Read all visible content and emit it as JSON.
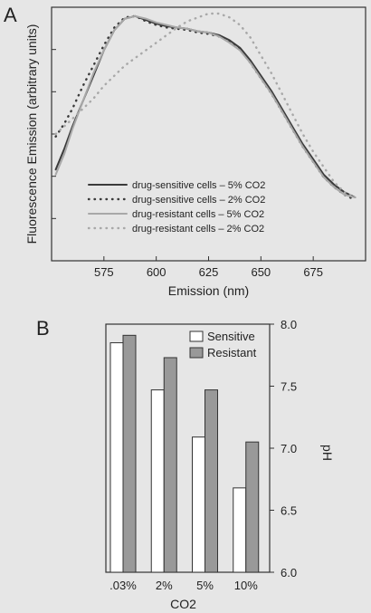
{
  "chart_data": [
    {
      "panel": "A",
      "type": "line",
      "xlabel": "Emission (nm)",
      "ylabel": "Fluorescence Emission (arbitrary units)",
      "xlim": [
        550,
        700
      ],
      "x_ticks": [
        575,
        600,
        625,
        650,
        675
      ],
      "ylim": [
        0,
        1
      ],
      "grid": false,
      "legend_position": "lower-left",
      "series": [
        {
          "name": "drug-sensitive cells – 5% CO2",
          "style": "solid-dark",
          "color": "#3a3a3a",
          "x": [
            552,
            556,
            560,
            565,
            570,
            575,
            580,
            585,
            590,
            595,
            600,
            605,
            610,
            615,
            620,
            625,
            630,
            635,
            640,
            645,
            650,
            655,
            660,
            665,
            670,
            675,
            680,
            685,
            690,
            695
          ],
          "y": [
            0.36,
            0.44,
            0.53,
            0.63,
            0.73,
            0.83,
            0.91,
            0.955,
            0.965,
            0.95,
            0.935,
            0.925,
            0.92,
            0.915,
            0.905,
            0.9,
            0.89,
            0.87,
            0.84,
            0.79,
            0.73,
            0.67,
            0.6,
            0.53,
            0.46,
            0.4,
            0.34,
            0.3,
            0.27,
            0.25
          ]
        },
        {
          "name": "drug-sensitive cells – 2% CO2",
          "style": "dotted-dark",
          "color": "#3a3a3a",
          "x": [
            552,
            556,
            560,
            565,
            570,
            575,
            580,
            585,
            590,
            595,
            600,
            605,
            610,
            615,
            620,
            625,
            630,
            635,
            640,
            645,
            650,
            655,
            660,
            665,
            670,
            675,
            680,
            685,
            690,
            695
          ],
          "y": [
            0.49,
            0.54,
            0.6,
            0.69,
            0.77,
            0.85,
            0.92,
            0.96,
            0.965,
            0.945,
            0.93,
            0.92,
            0.915,
            0.91,
            0.9,
            0.895,
            0.885,
            0.865,
            0.835,
            0.78,
            0.72,
            0.66,
            0.59,
            0.52,
            0.45,
            0.39,
            0.33,
            0.29,
            0.26,
            0.24
          ]
        },
        {
          "name": "drug-resistant cells – 5% CO2",
          "style": "solid-light",
          "color": "#a8a8a8",
          "x": [
            552,
            556,
            560,
            565,
            570,
            575,
            580,
            585,
            590,
            595,
            600,
            605,
            610,
            615,
            620,
            625,
            630,
            635,
            640,
            645,
            650,
            655,
            660,
            665,
            670,
            675,
            680,
            685,
            690,
            695
          ],
          "y": [
            0.34,
            0.42,
            0.52,
            0.63,
            0.74,
            0.83,
            0.91,
            0.955,
            0.965,
            0.955,
            0.94,
            0.93,
            0.92,
            0.915,
            0.905,
            0.9,
            0.885,
            0.86,
            0.83,
            0.78,
            0.72,
            0.66,
            0.59,
            0.52,
            0.45,
            0.39,
            0.33,
            0.29,
            0.26,
            0.25
          ]
        },
        {
          "name": "drug-resistant cells – 2% CO2",
          "style": "dotted-light",
          "color": "#a8a8a8",
          "x": [
            552,
            556,
            560,
            565,
            570,
            575,
            580,
            585,
            590,
            595,
            600,
            605,
            610,
            615,
            620,
            625,
            630,
            635,
            640,
            645,
            650,
            655,
            660,
            665,
            670,
            675,
            680,
            685,
            690,
            695
          ],
          "y": [
            0.5,
            0.53,
            0.56,
            0.6,
            0.64,
            0.69,
            0.73,
            0.77,
            0.8,
            0.83,
            0.86,
            0.89,
            0.92,
            0.945,
            0.96,
            0.975,
            0.975,
            0.96,
            0.93,
            0.88,
            0.81,
            0.74,
            0.66,
            0.58,
            0.5,
            0.43,
            0.37,
            0.31,
            0.27,
            0.25
          ]
        }
      ]
    },
    {
      "panel": "B",
      "type": "bar",
      "xlabel": "CO2",
      "ylabel": "pH",
      "categories": [
        ".03%",
        "2%",
        "5%",
        "10%"
      ],
      "ylim": [
        6.0,
        8.0
      ],
      "y_ticks": [
        "6.0",
        "6.5",
        "7.0",
        "7.5",
        "8.0"
      ],
      "grid": false,
      "legend_position": "top-right",
      "series": [
        {
          "name": "Sensitive",
          "color": "#ffffff",
          "values": [
            7.85,
            7.47,
            7.09,
            6.68
          ]
        },
        {
          "name": "Resistant",
          "color": "#999999",
          "values": [
            7.91,
            7.73,
            7.47,
            7.05
          ]
        }
      ]
    }
  ]
}
